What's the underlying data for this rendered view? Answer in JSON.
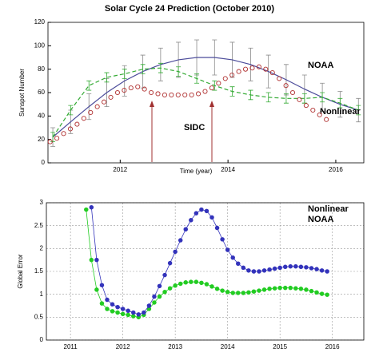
{
  "chart_data": [
    {
      "type": "line",
      "title": "Solar Cycle 24 Prediction (October 2010)",
      "x_label": "Time (year)",
      "y_label": "Sunspot Number",
      "xlim": [
        2010.66,
        2016.52
      ],
      "xticks": [
        2012,
        2014,
        2016
      ],
      "ylim": [
        0,
        120
      ],
      "yticks": [
        0,
        20,
        40,
        60,
        80,
        100,
        120
      ],
      "grid": false,
      "series": [
        {
          "name": "NOAA",
          "color": "#4b4b9a",
          "label_color": "#2f2f99",
          "style": "line",
          "error_color": "#8a8a8a",
          "x": [
            2010.75,
            2011.08,
            2011.42,
            2011.75,
            2012.08,
            2012.42,
            2012.75,
            2013.08,
            2013.42,
            2013.75,
            2014.08,
            2014.42,
            2014.75,
            2015.08,
            2015.42,
            2015.75,
            2016.08,
            2016.42
          ],
          "values": [
            22,
            35,
            48,
            60,
            70,
            78,
            84,
            88,
            90,
            90,
            88,
            84,
            78,
            71,
            63,
            56,
            50,
            45
          ],
          "errors": [
            8,
            10,
            11,
            12,
            13,
            14,
            14,
            15,
            15,
            15,
            15,
            14,
            14,
            13,
            12,
            12,
            11,
            10
          ]
        },
        {
          "name": "Nonlinear",
          "color": "#33aa33",
          "label_color": "#22aa22",
          "style": "dashed",
          "error_color": "#33aa33",
          "x": [
            2010.75,
            2011.08,
            2011.42,
            2011.75,
            2012.08,
            2012.42,
            2012.75,
            2013.08,
            2013.42,
            2013.75,
            2014.08,
            2014.42,
            2014.75,
            2015.08,
            2015.42,
            2015.75,
            2016.08,
            2016.42
          ],
          "values": [
            22,
            45,
            66,
            73,
            76,
            80,
            81,
            78,
            72,
            66,
            61,
            58,
            56,
            55,
            55,
            56,
            51,
            45
          ],
          "errors": [
            4,
            4,
            4,
            4,
            4,
            4,
            4,
            4,
            4,
            4,
            4,
            4,
            4,
            4,
            4,
            4,
            4,
            4
          ]
        },
        {
          "name": "SIDC",
          "color": "#b03030",
          "label_color": "#a02020",
          "style": "circles",
          "x": [
            2010.7,
            2010.825,
            2010.95,
            2011.075,
            2011.2,
            2011.325,
            2011.45,
            2011.575,
            2011.7,
            2011.825,
            2011.95,
            2012.075,
            2012.2,
            2012.325,
            2012.45,
            2012.575,
            2012.7,
            2012.825,
            2012.95,
            2013.075,
            2013.2,
            2013.325,
            2013.45,
            2013.575,
            2013.7,
            2013.825,
            2013.95,
            2014.075,
            2014.2,
            2014.325,
            2014.45,
            2014.575,
            2014.7,
            2014.825,
            2014.95,
            2015.075,
            2015.2,
            2015.325,
            2015.45,
            2015.575,
            2015.7,
            2015.825
          ],
          "values": [
            18,
            21,
            25,
            29,
            33,
            38,
            43,
            48,
            52,
            56,
            60,
            62,
            64,
            65,
            63,
            60,
            59,
            58,
            58,
            58,
            58,
            58,
            59,
            61,
            64,
            68,
            72,
            75,
            78,
            80,
            81,
            82,
            80,
            77,
            72,
            66,
            60,
            54,
            49,
            45,
            41,
            37
          ]
        }
      ]
    },
    {
      "type": "line",
      "y_label": "Global Error",
      "xlim": [
        2010.54,
        2016.6
      ],
      "xticks": [
        2011,
        2012,
        2013,
        2014,
        2015,
        2016
      ],
      "ylim": [
        0,
        3
      ],
      "yticks": [
        0,
        0.5,
        1,
        1.5,
        2,
        2.5,
        3
      ],
      "grid": true,
      "series": [
        {
          "name": "Nonlinear",
          "color": "#22cc22",
          "label_color": "#22aa22",
          "style": "dots",
          "x": [
            2011.3,
            2011.4,
            2011.5,
            2011.6,
            2011.7,
            2011.8,
            2011.9,
            2012.0,
            2012.1,
            2012.2,
            2012.3,
            2012.4,
            2012.5,
            2012.6,
            2012.7,
            2012.8,
            2012.9,
            2013.0,
            2013.1,
            2013.2,
            2013.3,
            2013.4,
            2013.5,
            2013.6,
            2013.7,
            2013.8,
            2013.9,
            2014.0,
            2014.1,
            2014.2,
            2014.3,
            2014.4,
            2014.5,
            2014.6,
            2014.7,
            2014.8,
            2014.9,
            2015.0,
            2015.1,
            2015.2,
            2015.3,
            2015.4,
            2015.5,
            2015.6,
            2015.7,
            2015.8,
            2015.9
          ],
          "values": [
            2.85,
            1.75,
            1.1,
            0.8,
            0.68,
            0.63,
            0.6,
            0.57,
            0.55,
            0.52,
            0.5,
            0.55,
            0.68,
            0.82,
            0.95,
            1.05,
            1.13,
            1.19,
            1.23,
            1.26,
            1.27,
            1.27,
            1.25,
            1.22,
            1.17,
            1.12,
            1.08,
            1.05,
            1.03,
            1.03,
            1.03,
            1.04,
            1.06,
            1.08,
            1.1,
            1.12,
            1.13,
            1.14,
            1.14,
            1.14,
            1.13,
            1.12,
            1.1,
            1.07,
            1.04,
            1.01,
            0.99
          ]
        },
        {
          "name": "NOAA",
          "color": "#3333bb",
          "label_color": "#3333aa",
          "style": "dots",
          "x": [
            2011.4,
            2011.5,
            2011.6,
            2011.7,
            2011.8,
            2011.9,
            2012.0,
            2012.1,
            2012.2,
            2012.3,
            2012.4,
            2012.5,
            2012.6,
            2012.7,
            2012.8,
            2012.9,
            2013.0,
            2013.1,
            2013.2,
            2013.3,
            2013.4,
            2013.5,
            2013.6,
            2013.7,
            2013.8,
            2013.9,
            2014.0,
            2014.1,
            2014.2,
            2014.3,
            2014.4,
            2014.5,
            2014.6,
            2014.7,
            2014.8,
            2014.9,
            2015.0,
            2015.1,
            2015.2,
            2015.3,
            2015.4,
            2015.5,
            2015.6,
            2015.7,
            2015.8,
            2015.9
          ],
          "values": [
            2.9,
            1.75,
            1.2,
            0.88,
            0.78,
            0.72,
            0.68,
            0.64,
            0.6,
            0.56,
            0.6,
            0.75,
            0.95,
            1.18,
            1.42,
            1.68,
            1.93,
            2.18,
            2.42,
            2.62,
            2.77,
            2.85,
            2.82,
            2.68,
            2.45,
            2.2,
            1.97,
            1.8,
            1.67,
            1.58,
            1.52,
            1.5,
            1.5,
            1.52,
            1.54,
            1.56,
            1.58,
            1.6,
            1.61,
            1.61,
            1.6,
            1.59,
            1.57,
            1.55,
            1.52,
            1.5
          ]
        }
      ]
    }
  ]
}
